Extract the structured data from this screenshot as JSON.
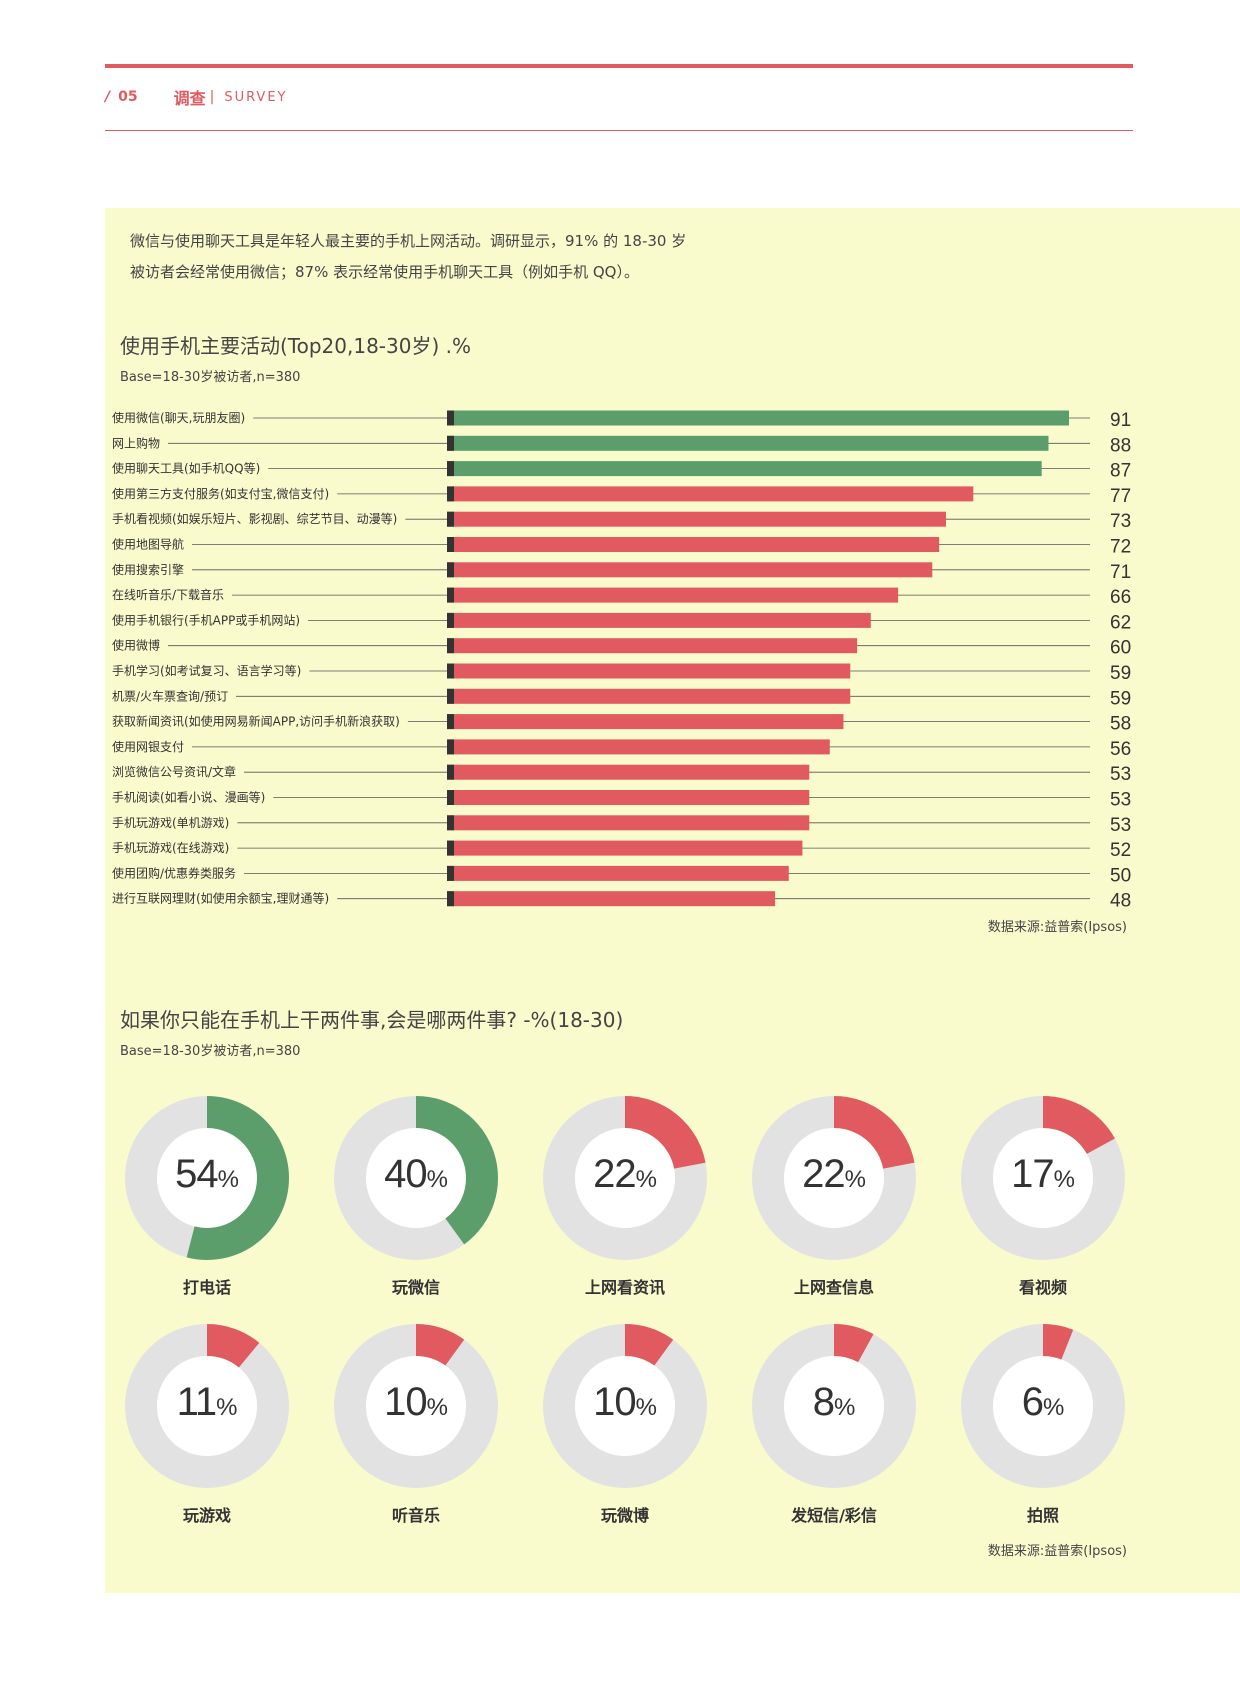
{
  "header": {
    "slash": "/",
    "page_number": "05",
    "section_cn": "调查",
    "section_en": "SURVEY"
  },
  "intro": {
    "line1": "微信与使用聊天工具是年轻人最主要的手机上网活动。调研显示，91% 的 18-30 岁",
    "line2": "被访者会经常使用微信；87% 表示经常使用手机聊天工具（例如手机 QQ）。"
  },
  "colors": {
    "accent": "#e05a60",
    "green": "#5c9e6b",
    "red": "#e05a60",
    "donut_track": "#e2e2e2",
    "panel": "#fafbcd",
    "bar_cap": "#333333"
  },
  "chart1": {
    "title": "使用手机主要活动(Top20,18-30岁) .%",
    "base": "Base=18-30岁被访者,n=380",
    "source": "数据来源:益普索(Ipsos)"
  },
  "chart2": {
    "title": "如果你只能在手机上干两件事,会是哪两件事? -%(18-30)",
    "base": "Base=18-30岁被访者,n=380",
    "source": "数据来源:益普索(Ipsos)"
  },
  "chart_data": [
    {
      "type": "bar",
      "orientation": "horizontal",
      "title": "使用手机主要活动(Top20,18-30岁) .%",
      "categories": [
        "使用微信(聊天,玩朋友圈)",
        "网上购物",
        "使用聊天工具(如手机QQ等)",
        "使用第三方支付服务(如支付宝,微信支付)",
        "手机看视频(如娱乐短片、影视剧、综艺节目、动漫等)",
        "使用地图导航",
        "使用搜索引擎",
        "在线听音乐/下载音乐",
        "使用手机银行(手机APP或手机网站)",
        "使用微博",
        "手机学习(如考试复习、语言学习等)",
        "机票/火车票查询/预订",
        "获取新闻资讯(如使用网易新闻APP,访问手机新浪获取)",
        "使用网银支付",
        "浏览微信公号资讯/文章",
        "手机阅读(如看小说、漫画等)",
        "手机玩游戏(单机游戏)",
        "手机玩游戏(在线游戏)",
        "使用团购/优惠券类服务",
        "进行互联网理财(如使用余额宝,理财通等)"
      ],
      "values": [
        91,
        88,
        87,
        77,
        73,
        72,
        71,
        66,
        62,
        60,
        59,
        59,
        58,
        56,
        53,
        53,
        53,
        52,
        50,
        48
      ],
      "bar_colors": [
        "green",
        "green",
        "green",
        "red",
        "red",
        "red",
        "red",
        "red",
        "red",
        "red",
        "red",
        "red",
        "red",
        "red",
        "red",
        "red",
        "red",
        "red",
        "red",
        "red"
      ],
      "xlim": [
        0,
        91
      ]
    },
    {
      "type": "pie",
      "style": "donut",
      "title": "如果你只能在手机上干两件事,会是哪两件事? -%(18-30)",
      "categories": [
        "打电话",
        "玩微信",
        "上网看资讯",
        "上网查信息",
        "看视频",
        "玩游戏",
        "听音乐",
        "玩微博",
        "发短信/彩信",
        "拍照"
      ],
      "values": [
        54,
        40,
        22,
        22,
        17,
        11,
        10,
        10,
        8,
        6
      ],
      "unit": "%",
      "colors": [
        "green",
        "green",
        "red",
        "red",
        "red",
        "red",
        "red",
        "red",
        "red",
        "red"
      ]
    }
  ]
}
